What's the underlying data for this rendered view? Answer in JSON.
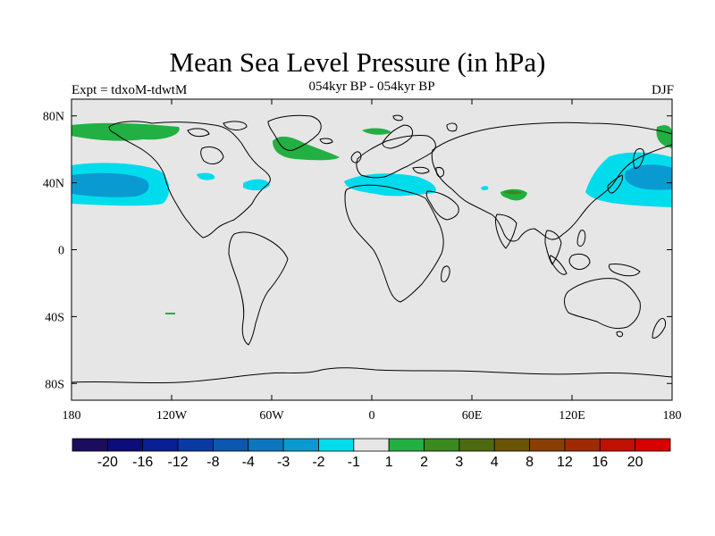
{
  "header": {
    "title": "Mean Sea Level Pressure (in hPa)",
    "left_label": "Expt = tdxoM-tdwtM",
    "center_label": "054kyr BP - 054kyr BP",
    "right_label": "DJF"
  },
  "map": {
    "projection": "cylindrical-equidistant",
    "lon_range": [
      -180,
      180
    ],
    "lat_range": [
      -90,
      90
    ],
    "x_ticks": [
      {
        "value": -180,
        "label": "180"
      },
      {
        "value": -120,
        "label": "120W"
      },
      {
        "value": -60,
        "label": "60W"
      },
      {
        "value": 0,
        "label": "0"
      },
      {
        "value": 60,
        "label": "60E"
      },
      {
        "value": 120,
        "label": "120E"
      },
      {
        "value": 180,
        "label": "180"
      }
    ],
    "y_ticks": [
      {
        "value": 80,
        "label": "80N"
      },
      {
        "value": 40,
        "label": "40N"
      },
      {
        "value": 0,
        "label": "0"
      },
      {
        "value": -40,
        "label": "40S"
      },
      {
        "value": -80,
        "label": "80S"
      }
    ],
    "background_color": "#e6e6e6"
  },
  "colorbar": {
    "colors": [
      "#1c0d5c",
      "#0c0d7a",
      "#0a1f94",
      "#083aa4",
      "#0a58b0",
      "#0c77c0",
      "#0a9ad2",
      "#00dcec",
      "#e6e6e6",
      "#22b043",
      "#3a8a1e",
      "#4e6a10",
      "#6a5406",
      "#8a3e02",
      "#a02a00",
      "#c01000",
      "#d80000"
    ],
    "labels": [
      "-20",
      "-16",
      "-12",
      "-8",
      "-4",
      "-3",
      "-2",
      "-1",
      "1",
      "2",
      "3",
      "4",
      "8",
      "12",
      "16",
      "20"
    ]
  },
  "anomaly_regions": [
    {
      "name": "north-pacific-negative-outer",
      "level": "-1"
    },
    {
      "name": "north-pacific-negative-inner",
      "level": "-2"
    },
    {
      "name": "northwest-pacific-negative-outer",
      "level": "-1"
    },
    {
      "name": "northwest-pacific-negative-inner",
      "level": "-2"
    },
    {
      "name": "mediterranean-negative",
      "level": "-1"
    },
    {
      "name": "greenland-positive",
      "level": "1"
    },
    {
      "name": "arctic-positive",
      "level": "1"
    },
    {
      "name": "tibet-positive",
      "level": "1"
    }
  ]
}
